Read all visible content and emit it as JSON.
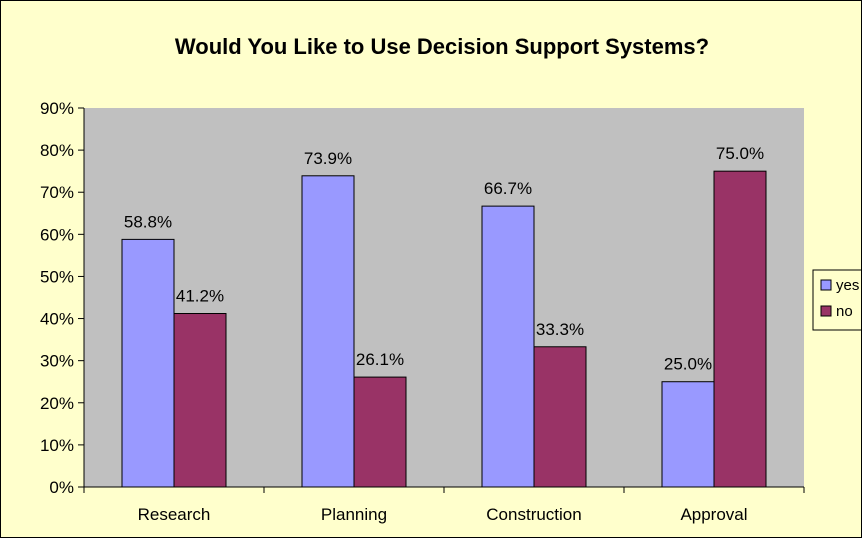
{
  "chart_data": {
    "type": "bar",
    "title": "Would You Like to Use Decision Support Systems?",
    "xlabel": "",
    "ylabel": "",
    "categories": [
      "Research",
      "Planning",
      "Construction",
      "Approval"
    ],
    "series": [
      {
        "name": "yes",
        "values": [
          58.8,
          73.9,
          66.7,
          25.0
        ],
        "labels": [
          "58.8%",
          "73.9%",
          "66.7%",
          "25.0%"
        ],
        "color": "#9999ff"
      },
      {
        "name": "no",
        "values": [
          41.2,
          26.1,
          33.3,
          75.0
        ],
        "labels": [
          "41.2%",
          "26.1%",
          "33.3%",
          "75.0%"
        ],
        "color": "#993366"
      }
    ],
    "ylim": [
      0,
      90
    ],
    "yticks": [
      0,
      10,
      20,
      30,
      40,
      50,
      60,
      70,
      80,
      90
    ],
    "ytick_labels": [
      "0%",
      "10%",
      "20%",
      "30%",
      "40%",
      "50%",
      "60%",
      "70%",
      "80%",
      "90%"
    ],
    "grid": false,
    "legend_position": "right",
    "plot_background": "#c0c0c0",
    "chart_background": "#ffffcc"
  }
}
